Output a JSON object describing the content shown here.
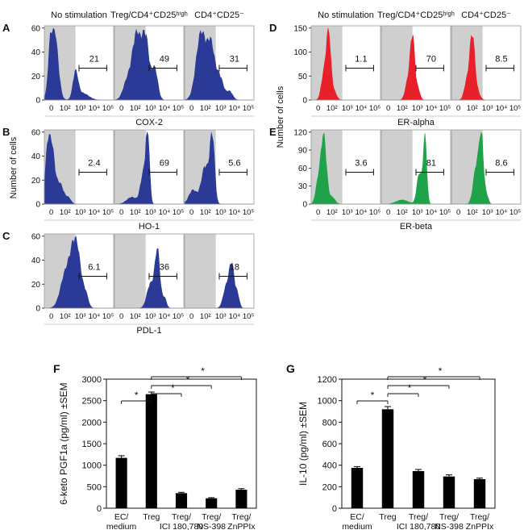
{
  "chart_data": [
    {
      "type": "area",
      "id": "flow",
      "y_axis_label": "Number of cells",
      "x_tick_labels": [
        "0",
        "10²",
        "10³",
        "10⁴",
        "10⁵"
      ],
      "column_headers_left": [
        "No stimulation",
        "Treg/CD4⁺CD25ʰⁱᵍʰ",
        "CD4⁺CD25⁻"
      ],
      "column_headers_right": [
        "No stimulation",
        "Treg/CD4⁺CD25ʰⁱᵍʰ",
        "CD4⁺CD25⁻"
      ],
      "panels": [
        {
          "letter": "A",
          "marker": "COX-2",
          "color": "#2a3a96",
          "ylim": [
            0,
            60
          ],
          "yticks": [
            "0",
            "20",
            "40",
            "60"
          ],
          "percents": [
            "21",
            "49",
            "31"
          ]
        },
        {
          "letter": "B",
          "marker": "HO-1",
          "color": "#2a3a96",
          "ylim": [
            0,
            60
          ],
          "yticks": [
            "0",
            "20",
            "40",
            "60"
          ],
          "percents": [
            "2.4",
            "69",
            "5.6"
          ]
        },
        {
          "letter": "C",
          "marker": "PDL-1",
          "color": "#2a3a96",
          "ylim": [
            0,
            60
          ],
          "yticks": [
            "0",
            "20",
            "40",
            "60"
          ],
          "percents": [
            "6.1",
            "36",
            "18"
          ]
        },
        {
          "letter": "D",
          "marker": "ER-alpha",
          "color": "#e8202a",
          "ylim": [
            0,
            150
          ],
          "yticks": [
            "0",
            "50",
            "100",
            "150"
          ],
          "percents": [
            "1.1",
            "70",
            "8.5"
          ]
        },
        {
          "letter": "E",
          "marker": "ER-beta",
          "color": "#1fa34a",
          "ylim": [
            0,
            120
          ],
          "yticks": [
            "0",
            "30",
            "60",
            "90",
            "120"
          ],
          "percents": [
            "3.6",
            "81",
            "8.6"
          ]
        }
      ]
    },
    {
      "type": "bar",
      "id": "F",
      "letter": "F",
      "ylabel": "6-keto PGF1a (pg/ml) ±SEM",
      "ylim": [
        0,
        3000
      ],
      "yticks": [
        "0",
        "500",
        "1000",
        "1500",
        "2000",
        "2500",
        "3000"
      ],
      "categories": [
        [
          "EC/",
          "medium"
        ],
        [
          "Treg",
          ""
        ],
        [
          "Treg/",
          "ICI 180,780"
        ],
        [
          "Treg/",
          "NS-398"
        ],
        [
          "Treg/",
          "ZnPPIx"
        ]
      ],
      "values": [
        1170,
        2650,
        350,
        230,
        430
      ],
      "errors": [
        50,
        50,
        20,
        15,
        25
      ],
      "sig_mark": "*"
    },
    {
      "type": "bar",
      "id": "G",
      "letter": "G",
      "ylabel": "IL-10 (pg/ml) ±SEM",
      "ylim": [
        0,
        1200
      ],
      "yticks": [
        "0",
        "200",
        "400",
        "600",
        "800",
        "1000",
        "1200"
      ],
      "categories": [
        [
          "EC/",
          "medium"
        ],
        [
          "Treg",
          ""
        ],
        [
          "Treg/",
          "ICI 180,780"
        ],
        [
          "Treg/",
          "NS-398"
        ],
        [
          "Treg/",
          "ZnPPIx"
        ]
      ],
      "values": [
        375,
        920,
        345,
        295,
        270
      ],
      "errors": [
        12,
        25,
        15,
        15,
        10
      ],
      "sig_mark": "*"
    }
  ]
}
